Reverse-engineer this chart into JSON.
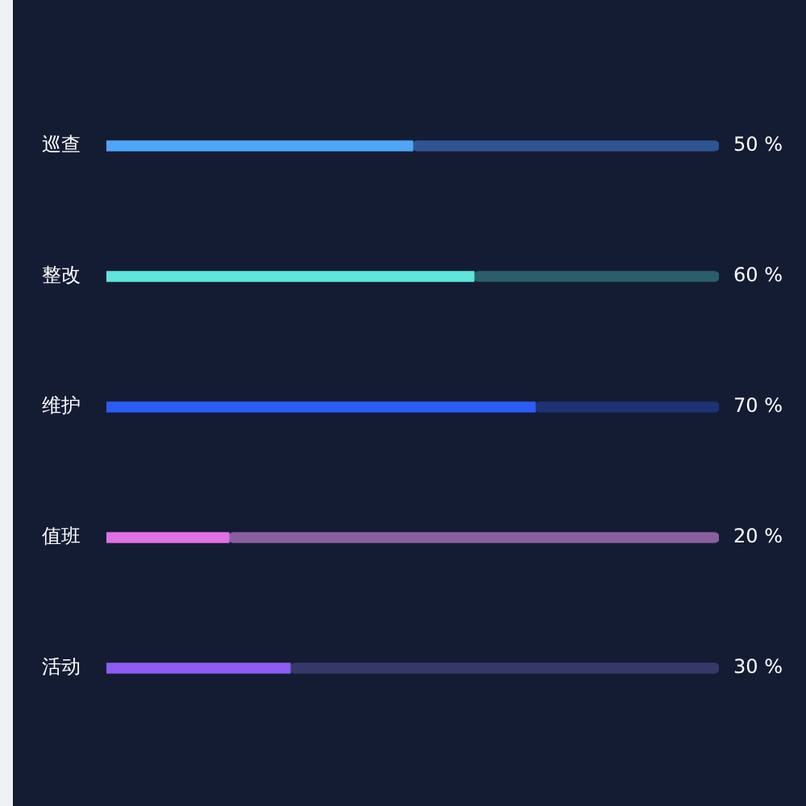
{
  "chart_data": {
    "type": "bar",
    "orientation": "horizontal",
    "categories": [
      "巡查",
      "整改",
      "维护",
      "值班",
      "活动"
    ],
    "series": [
      {
        "values": [
          50,
          60,
          70,
          20,
          30
        ],
        "colors": [
          "#4fa6f6",
          "#5ee6dc",
          "#2a5cf6",
          "#e070e6",
          "#8c5cf0"
        ],
        "value_labels": [
          "50 %",
          "60 %",
          "70 %",
          "20 %",
          "30 %"
        ]
      },
      {
        "values": [
          50,
          40,
          30,
          80,
          70
        ],
        "colors": [
          "#2f5590",
          "#2a5e6a",
          "#1c3272",
          "#8a5fa0",
          "#363868"
        ]
      }
    ],
    "stacked": true,
    "xlim": [
      0,
      100
    ],
    "tick_labels": "y",
    "grid": false,
    "legend": false
  }
}
